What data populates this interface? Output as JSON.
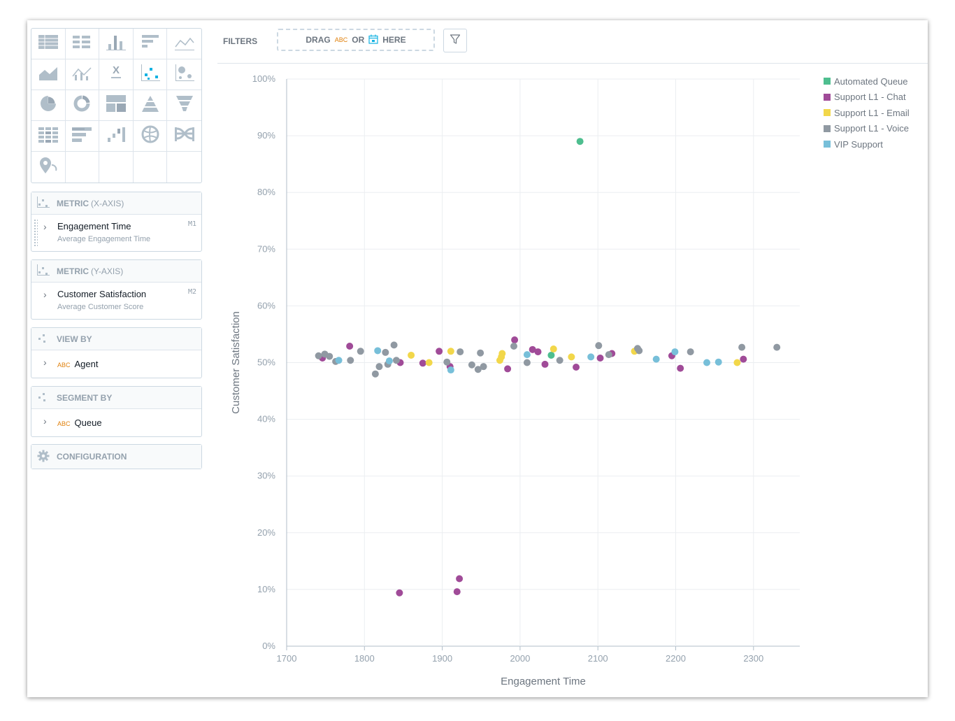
{
  "visualizations": [
    "table-icon",
    "headline-table-icon",
    "column-chart-icon",
    "bar-chart-icon",
    "line-chart-icon",
    "area-chart-icon",
    "combo-chart-icon",
    "xirr-icon",
    "scatter-plot-icon",
    "bubble-chart-icon",
    "pie-chart-icon",
    "donut-chart-icon",
    "treemap-icon",
    "pyramid-icon",
    "funnel-icon",
    "heatmap-icon",
    "bullet-chart-icon",
    "waterfall-icon",
    "dependency-wheel-icon",
    "sankey-icon",
    "geo-pushpin-icon",
    "",
    "",
    "",
    ""
  ],
  "buckets": {
    "metric_x": {
      "head_bold": "METRIC",
      "head_rest": "(X-AXIS)",
      "item": {
        "title": "Engagement Time",
        "sub": "Average Engagement Time",
        "code": "M1"
      }
    },
    "metric_y": {
      "head_bold": "METRIC",
      "head_rest": "(Y-AXIS)",
      "item": {
        "title": "Customer Satisfaction",
        "sub": "Average Customer Score",
        "code": "M2"
      }
    },
    "view_by": {
      "head": "VIEW BY",
      "abc": "ABC",
      "item": "Agent"
    },
    "segment_by": {
      "head": "SEGMENT BY",
      "abc": "ABC",
      "item": "Queue"
    },
    "configuration": {
      "head": "CONFIGURATION"
    }
  },
  "filters": {
    "label": "FILTERS",
    "drag": "DRAG",
    "abc": "ABC",
    "or": "OR",
    "here": "HERE"
  },
  "colors": {
    "Automated Queue": "#4ebe8f",
    "Support L1 - Chat": "#a04b98",
    "Support L1 - Email": "#f2d74a",
    "Support L1 - Voice": "#9099a2",
    "VIP Support": "#77bfd9"
  },
  "chart_data": {
    "type": "scatter",
    "xlabel": "Engagement Time",
    "ylabel": "Customer Satisfaction",
    "xlim": [
      1700,
      2360
    ],
    "ylim": [
      0,
      100
    ],
    "x_ticks": [
      "1700",
      "1800",
      "1900",
      "2000",
      "2100",
      "2200",
      "2300"
    ],
    "y_ticks": [
      "0%",
      "10%",
      "20%",
      "30%",
      "40%",
      "50%",
      "60%",
      "70%",
      "80%",
      "90%",
      "100%"
    ],
    "grid": true,
    "legend_position": "right",
    "series": [
      {
        "name": "Automated Queue",
        "points": [
          [
            2077,
            89.0
          ],
          [
            2040,
            51.3
          ]
        ]
      },
      {
        "name": "Support L1 - Chat",
        "points": [
          [
            1746,
            50.8
          ],
          [
            1781,
            52.9
          ],
          [
            1845,
            9.4
          ],
          [
            1846,
            50.0
          ],
          [
            1875,
            49.9
          ],
          [
            1896,
            52.0
          ],
          [
            1910,
            49.3
          ],
          [
            1919,
            9.6
          ],
          [
            1922,
            11.9
          ],
          [
            1984,
            48.9
          ],
          [
            1993,
            54.0
          ],
          [
            2016,
            52.3
          ],
          [
            2023,
            51.9
          ],
          [
            2032,
            49.7
          ],
          [
            2072,
            49.2
          ],
          [
            2103,
            50.8
          ],
          [
            2118,
            51.6
          ],
          [
            2195,
            51.2
          ],
          [
            2206,
            49.0
          ],
          [
            2287,
            50.6
          ]
        ]
      },
      {
        "name": "Support L1 - Email",
        "points": [
          [
            1860,
            51.3
          ],
          [
            1883,
            50.0
          ],
          [
            1911,
            52.0
          ],
          [
            1974,
            50.4
          ],
          [
            1976,
            51.0
          ],
          [
            1977,
            51.6
          ],
          [
            2043,
            52.4
          ],
          [
            2066,
            51.0
          ],
          [
            2147,
            52.0
          ],
          [
            2279,
            50.0
          ]
        ]
      },
      {
        "name": "Support L1 - Voice",
        "points": [
          [
            1741,
            51.2
          ],
          [
            1749,
            51.5
          ],
          [
            1755,
            51.1
          ],
          [
            1763,
            50.2
          ],
          [
            1782,
            50.4
          ],
          [
            1795,
            52.0
          ],
          [
            1814,
            48.0
          ],
          [
            1819,
            49.3
          ],
          [
            1827,
            51.8
          ],
          [
            1830,
            49.7
          ],
          [
            1838,
            53.1
          ],
          [
            1841,
            50.4
          ],
          [
            1906,
            50.1
          ],
          [
            1923,
            51.9
          ],
          [
            1938,
            49.6
          ],
          [
            1946,
            48.8
          ],
          [
            1949,
            51.7
          ],
          [
            1953,
            49.3
          ],
          [
            1992,
            52.9
          ],
          [
            2009,
            50.0
          ],
          [
            2051,
            50.4
          ],
          [
            2101,
            53.0
          ],
          [
            2114,
            51.4
          ],
          [
            2151,
            52.5
          ],
          [
            2153,
            52.1
          ],
          [
            2219,
            51.9
          ],
          [
            2285,
            52.7
          ],
          [
            2330,
            52.7
          ]
        ]
      },
      {
        "name": "VIP Support",
        "points": [
          [
            1767,
            50.4
          ],
          [
            1817,
            52.1
          ],
          [
            1832,
            50.3
          ],
          [
            1911,
            48.7
          ],
          [
            2009,
            51.4
          ],
          [
            2091,
            51.0
          ],
          [
            2175,
            50.6
          ],
          [
            2199,
            51.9
          ],
          [
            2240,
            50.0
          ],
          [
            2255,
            50.1
          ]
        ]
      }
    ]
  }
}
